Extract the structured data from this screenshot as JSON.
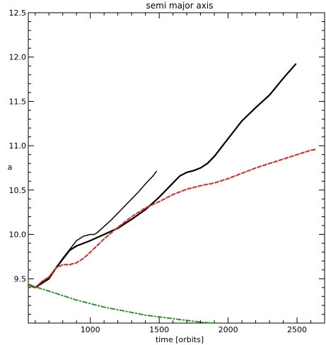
{
  "chart_data": {
    "type": "line",
    "title": "semi major axis",
    "xlabel": "time [orbits]",
    "ylabel": "a",
    "xlim": [
      550,
      2700
    ],
    "ylim": [
      9.0,
      12.5
    ],
    "xticks": [
      1000,
      1500,
      2000,
      2500
    ],
    "xtick_labels": [
      "1000",
      "1500",
      "2000",
      "2500"
    ],
    "yticks": [
      9.5,
      10.0,
      10.5,
      11.0,
      11.5,
      12.0,
      12.5
    ],
    "ytick_labels": [
      "9.5",
      "10.0",
      "10.5",
      "11.0",
      "11.5",
      "12.0",
      "12.5"
    ],
    "grid": false,
    "legend": "none",
    "series": [
      {
        "color": "#000000",
        "style": "dotted",
        "x": [
          550,
          600,
          650,
          700,
          750,
          800,
          850,
          900,
          950,
          1000,
          1030,
          1050,
          1100,
          1150,
          1200,
          1250,
          1300,
          1350,
          1400,
          1450,
          1480
        ],
        "y": [
          9.43,
          9.4,
          9.47,
          9.52,
          9.62,
          9.73,
          9.83,
          9.93,
          9.98,
          10.0,
          10.0,
          10.02,
          10.09,
          10.16,
          10.24,
          10.32,
          10.4,
          10.48,
          10.57,
          10.65,
          10.71
        ]
      },
      {
        "color": "#000000",
        "style": "solid",
        "x": [
          550,
          600,
          650,
          700,
          750,
          800,
          850,
          900,
          950,
          1000,
          1100,
          1200,
          1300,
          1400,
          1500,
          1600,
          1650,
          1700,
          1750,
          1800,
          1850,
          1900,
          2000,
          2100,
          2200,
          2300,
          2400,
          2490
        ],
        "y": [
          9.43,
          9.4,
          9.45,
          9.5,
          9.62,
          9.72,
          9.82,
          9.87,
          9.9,
          9.93,
          10.0,
          10.07,
          10.17,
          10.28,
          10.42,
          10.58,
          10.66,
          10.7,
          10.72,
          10.75,
          10.8,
          10.88,
          11.08,
          11.28,
          11.43,
          11.57,
          11.76,
          11.92
        ]
      },
      {
        "color": "#e8231e",
        "style": "dashed",
        "x": [
          550,
          600,
          650,
          700,
          750,
          800,
          850,
          900,
          950,
          1000,
          1100,
          1200,
          1300,
          1400,
          1500,
          1600,
          1700,
          1800,
          1900,
          2000,
          2100,
          2200,
          2300,
          2400,
          2500,
          2600,
          2640
        ],
        "y": [
          9.43,
          9.4,
          9.47,
          9.52,
          9.62,
          9.66,
          9.66,
          9.68,
          9.73,
          9.8,
          9.95,
          10.08,
          10.2,
          10.3,
          10.37,
          10.45,
          10.51,
          10.55,
          10.58,
          10.63,
          10.69,
          10.75,
          10.8,
          10.85,
          10.9,
          10.95,
          10.96
        ]
      },
      {
        "color": "#1e8b1e",
        "style": "dashdot",
        "x": [
          550,
          600,
          700,
          800,
          900,
          1000,
          1100,
          1200,
          1300,
          1400,
          1500,
          1600,
          1700,
          1800,
          1900
        ],
        "y": [
          9.44,
          9.41,
          9.36,
          9.31,
          9.26,
          9.22,
          9.18,
          9.15,
          9.12,
          9.09,
          9.07,
          9.05,
          9.03,
          9.01,
          9.0
        ]
      }
    ]
  }
}
